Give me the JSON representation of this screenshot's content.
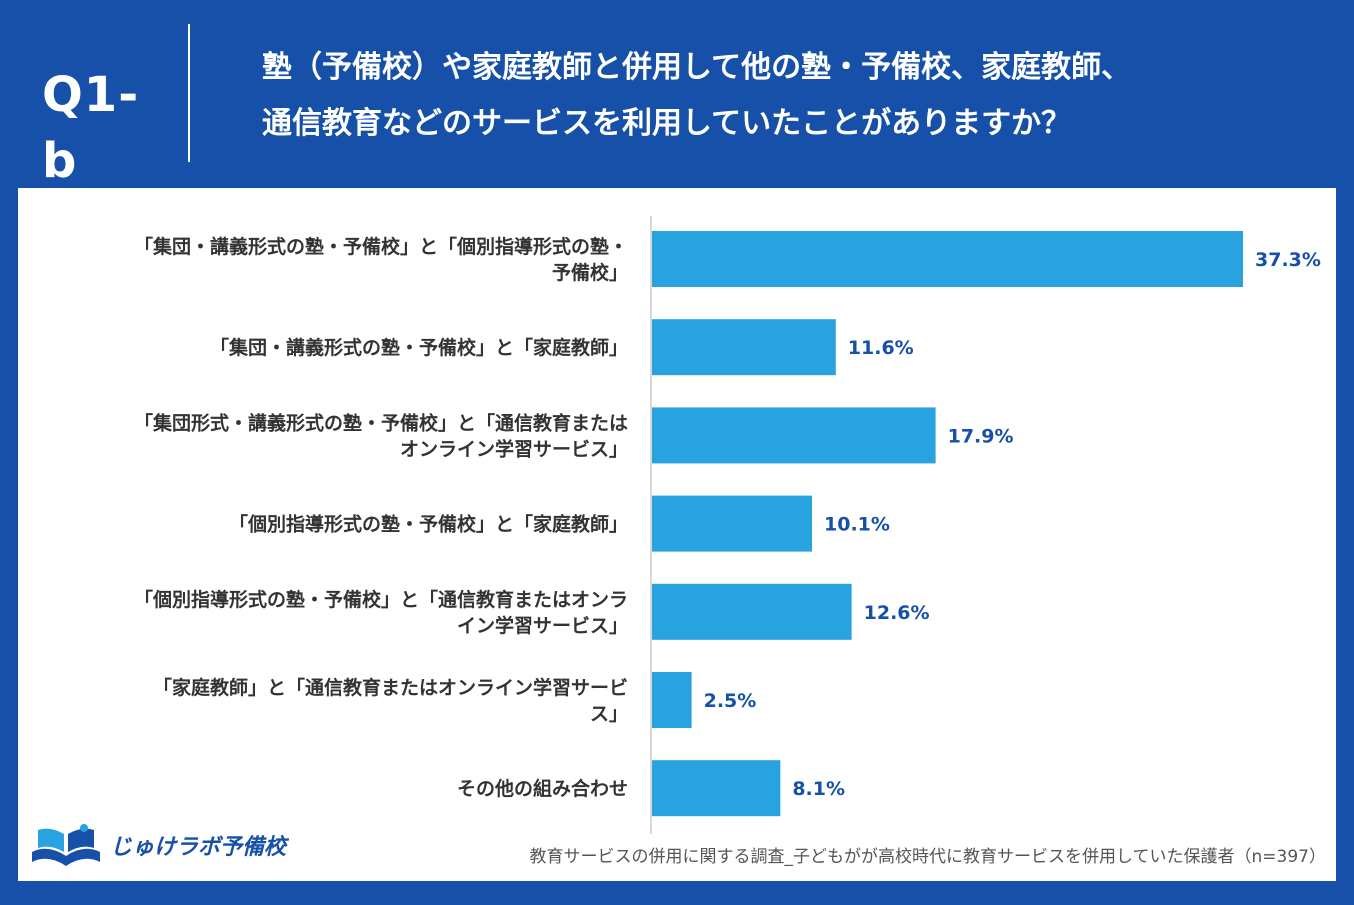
{
  "header": {
    "question_id": "Q1-b",
    "title_line1": "塾（予備校）や家庭教師と併用して他の塾・予備校、家庭教師、",
    "title_line2": "通信教育などのサービスを利用していたことがありますか？"
  },
  "chart_data": {
    "type": "bar",
    "orientation": "horizontal",
    "categories": [
      [
        "「集団・講義形式の塾・予備校」と「個別指導形式の塾・",
        "予備校」"
      ],
      [
        "「集団・講義形式の塾・予備校」と「家庭教師」"
      ],
      [
        "「集団形式・講義形式の塾・予備校」と「通信教育または",
        "オンライン学習サービス」"
      ],
      [
        "「個別指導形式の塾・予備校」と「家庭教師」"
      ],
      [
        "「個別指導形式の塾・予備校」と「通信教育またはオンラ",
        "イン学習サービス」"
      ],
      [
        "「家庭教師」と「通信教育またはオンライン学習サービ",
        "ス」"
      ],
      [
        "その他の組み合わせ"
      ]
    ],
    "values": [
      37.3,
      11.6,
      17.9,
      10.1,
      12.6,
      2.5,
      8.1
    ],
    "value_labels": [
      "37.3%",
      "11.6%",
      "17.9%",
      "10.1%",
      "12.6%",
      "2.5%",
      "8.1%"
    ],
    "unit": "%",
    "xlim": [
      0,
      40
    ],
    "grid": false,
    "bar_color": "#29a3df",
    "label_color": "#1650a8"
  },
  "footer": {
    "logo_text": "じゅけラボ予備校",
    "logo_icon": "open-book-icon",
    "source": "教育サービスの併用に関する調査_子どもがが高校時代に教育サービスを併用していた保護者（n=397）"
  },
  "colors": {
    "background": "#1650a8",
    "panel": "#ffffff",
    "bar": "#29a3df",
    "value_text": "#1650a8",
    "category_text": "#333333"
  }
}
